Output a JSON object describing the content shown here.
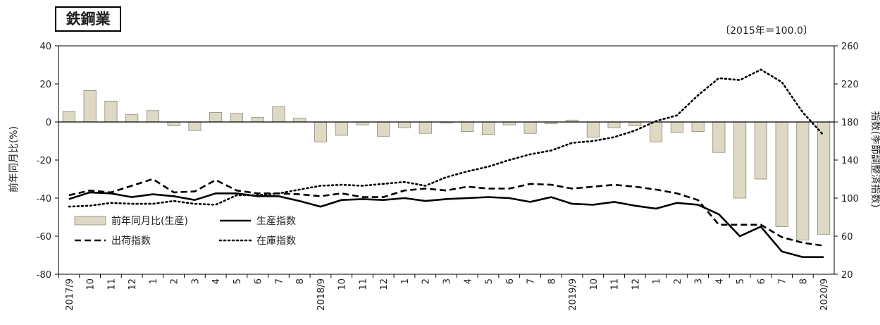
{
  "chart_data": {
    "type": "bar",
    "title": "鉄鋼業",
    "note": "〔2015年＝100.0〕",
    "ylabel_left": "前年同月比(%)",
    "ylabel_right": "指数(季節調整済指数)",
    "y_left": {
      "min": -80,
      "max": 40,
      "ticks": [
        "40",
        "20",
        "0",
        "-20",
        "-40",
        "-60",
        "-80"
      ]
    },
    "y_right": {
      "min": 20,
      "max": 260,
      "ticks": [
        "260",
        "220",
        "180",
        "140",
        "100",
        "60",
        "20"
      ]
    },
    "grid": false,
    "legend_position": "bottom-left",
    "categories": [
      "2017/9",
      "10",
      "11",
      "12",
      "1",
      "2",
      "3",
      "4",
      "5",
      "6",
      "7",
      "8",
      "2018/9",
      "10",
      "11",
      "12",
      "1",
      "2",
      "3",
      "4",
      "5",
      "6",
      "7",
      "8",
      "2019/9",
      "10",
      "11",
      "12",
      "1",
      "2",
      "3",
      "4",
      "5",
      "6",
      "7",
      "8",
      "2020/9"
    ],
    "series": [
      {
        "name": "前年同月比(生産)",
        "type": "bar",
        "axis": "left",
        "color": "#ddd9c4",
        "values": [
          5.5,
          16.5,
          11,
          4,
          6,
          -2,
          -4.5,
          5,
          4.5,
          2.5,
          8,
          2,
          -10.5,
          -7,
          -1.5,
          -7.5,
          -3,
          -6,
          -0.5,
          -5,
          -6.5,
          -1.5,
          -6,
          -1,
          1,
          -8,
          -3,
          -2,
          -10.5,
          -5.5,
          -5,
          -16,
          -40,
          -30,
          -55,
          -62,
          -59
        ]
      },
      {
        "name": "生産指数",
        "type": "line",
        "axis": "right",
        "style": "solid",
        "values": [
          99,
          106,
          105,
          101,
          104,
          102,
          98,
          105,
          105,
          102,
          102,
          97,
          91,
          98,
          99,
          98,
          100,
          97,
          99,
          100,
          101,
          100,
          96,
          101,
          94,
          93,
          96,
          92,
          89,
          95,
          93,
          83,
          60,
          70,
          44,
          38,
          38
        ]
      },
      {
        "name": "出荷指数",
        "type": "line",
        "axis": "right",
        "style": "dashed",
        "values": [
          103,
          108,
          106,
          113,
          120,
          106,
          107,
          119,
          108,
          105,
          105,
          104,
          102,
          105,
          101,
          101,
          108,
          110,
          108,
          112,
          110,
          110,
          115,
          114,
          110,
          112,
          114,
          112,
          109,
          105,
          98,
          72,
          72,
          72,
          59,
          53,
          50
        ]
      },
      {
        "name": "在庫指数",
        "type": "line",
        "axis": "right",
        "style": "dotted",
        "values": [
          91,
          92,
          95,
          94,
          94,
          97,
          94,
          93,
          103,
          103,
          105,
          109,
          113,
          114,
          113,
          115,
          117,
          113,
          122,
          128,
          133,
          140,
          146,
          150,
          158,
          160,
          164,
          171,
          181,
          187,
          208,
          226,
          224,
          235,
          222,
          190,
          166
        ]
      }
    ]
  }
}
